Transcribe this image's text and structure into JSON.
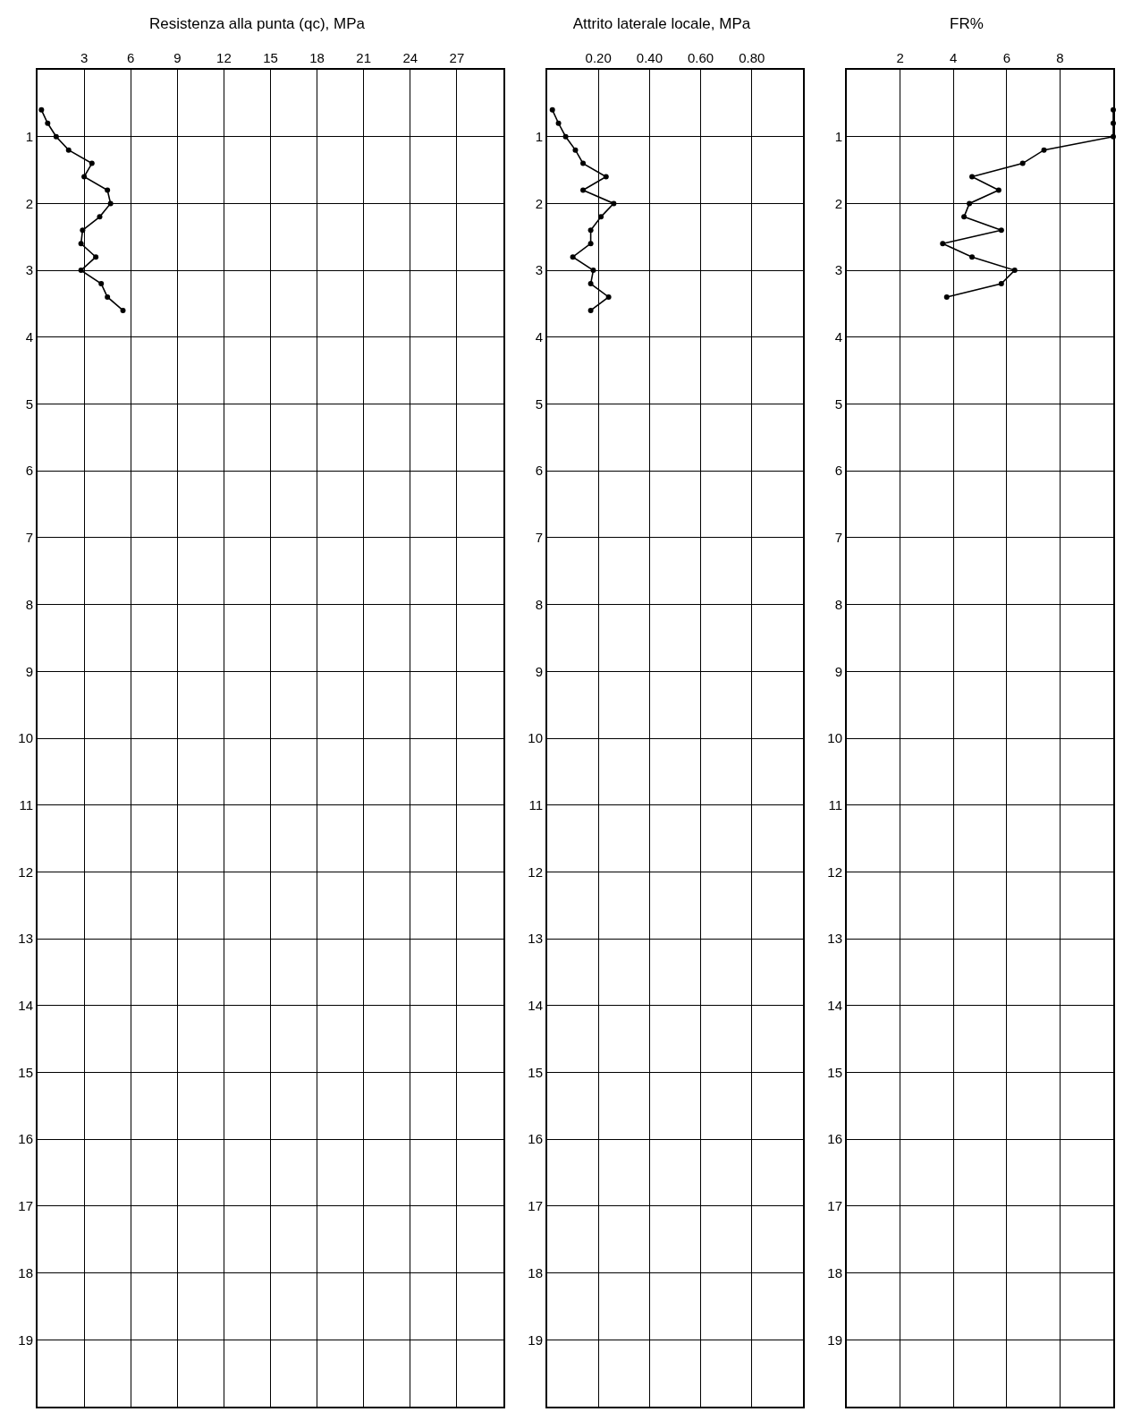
{
  "chart_data": [
    {
      "type": "line",
      "title": "Resistenza alla punta (qc), MPa",
      "color": "#000000",
      "marker": "circle",
      "line_style": "solid",
      "grid": true,
      "x": [
        0.25,
        0.65,
        1.2,
        2.0,
        3.5,
        3.0,
        4.5,
        4.7,
        4.0,
        2.9,
        2.8,
        3.75,
        2.8,
        4.1,
        4.5,
        5.5
      ],
      "values": [
        0.6,
        0.8,
        1.0,
        1.2,
        1.4,
        1.6,
        1.8,
        2.0,
        2.2,
        2.4,
        2.6,
        2.8,
        3.0,
        3.2,
        3.4,
        3.6
      ],
      "xlim": [
        0,
        30
      ],
      "xticks": [
        3,
        6,
        9,
        12,
        15,
        18,
        21,
        24,
        27
      ],
      "ylim": [
        20,
        0
      ],
      "yticks": [
        1,
        2,
        3,
        4,
        5,
        6,
        7,
        8,
        9,
        10,
        11,
        12,
        13,
        14,
        15,
        16,
        17,
        18,
        19
      ]
    },
    {
      "type": "line",
      "title": "Attrito laterale locale, MPa",
      "color": "#000000",
      "marker": "circle",
      "line_style": "solid",
      "grid": true,
      "x": [
        0.02,
        0.044,
        0.072,
        0.11,
        0.14,
        0.23,
        0.14,
        0.26,
        0.21,
        0.17,
        0.17,
        0.1,
        0.18,
        0.17,
        0.24,
        0.17
      ],
      "values": [
        0.6,
        0.8,
        1.0,
        1.2,
        1.4,
        1.6,
        1.8,
        2.0,
        2.2,
        2.4,
        2.6,
        2.8,
        3.0,
        3.2,
        3.4,
        3.6
      ],
      "xlim": [
        0,
        1
      ],
      "xticks": [
        {
          "value": 0.2,
          "label": "0.20"
        },
        {
          "value": 0.4,
          "label": "0.40"
        },
        {
          "value": 0.6,
          "label": "0.60"
        },
        {
          "value": 0.8,
          "label": "0.80"
        }
      ],
      "ylim": [
        20,
        0
      ],
      "yticks": [
        1,
        2,
        3,
        4,
        5,
        6,
        7,
        8,
        9,
        10,
        11,
        12,
        13,
        14,
        15,
        16,
        17,
        18,
        19
      ]
    },
    {
      "type": "line",
      "title": "FR%",
      "color": "#000000",
      "marker": "circle",
      "line_style": "solid",
      "grid": true,
      "x": [
        10,
        10,
        10,
        7.4,
        6.6,
        4.7,
        5.7,
        4.6,
        4.4,
        5.8,
        3.6,
        4.7,
        6.3,
        5.8,
        3.75
      ],
      "values": [
        0.6,
        0.8,
        1.0,
        1.2,
        1.4,
        1.6,
        1.8,
        2.0,
        2.2,
        2.4,
        2.6,
        2.8,
        3.0,
        3.2,
        3.4
      ],
      "xlim": [
        0,
        10
      ],
      "xticks": [
        2,
        4,
        6,
        8
      ],
      "ylim": [
        20,
        0
      ],
      "yticks": [
        1,
        2,
        3,
        4,
        5,
        6,
        7,
        8,
        9,
        10,
        11,
        12,
        13,
        14,
        15,
        16,
        17,
        18,
        19
      ]
    }
  ]
}
